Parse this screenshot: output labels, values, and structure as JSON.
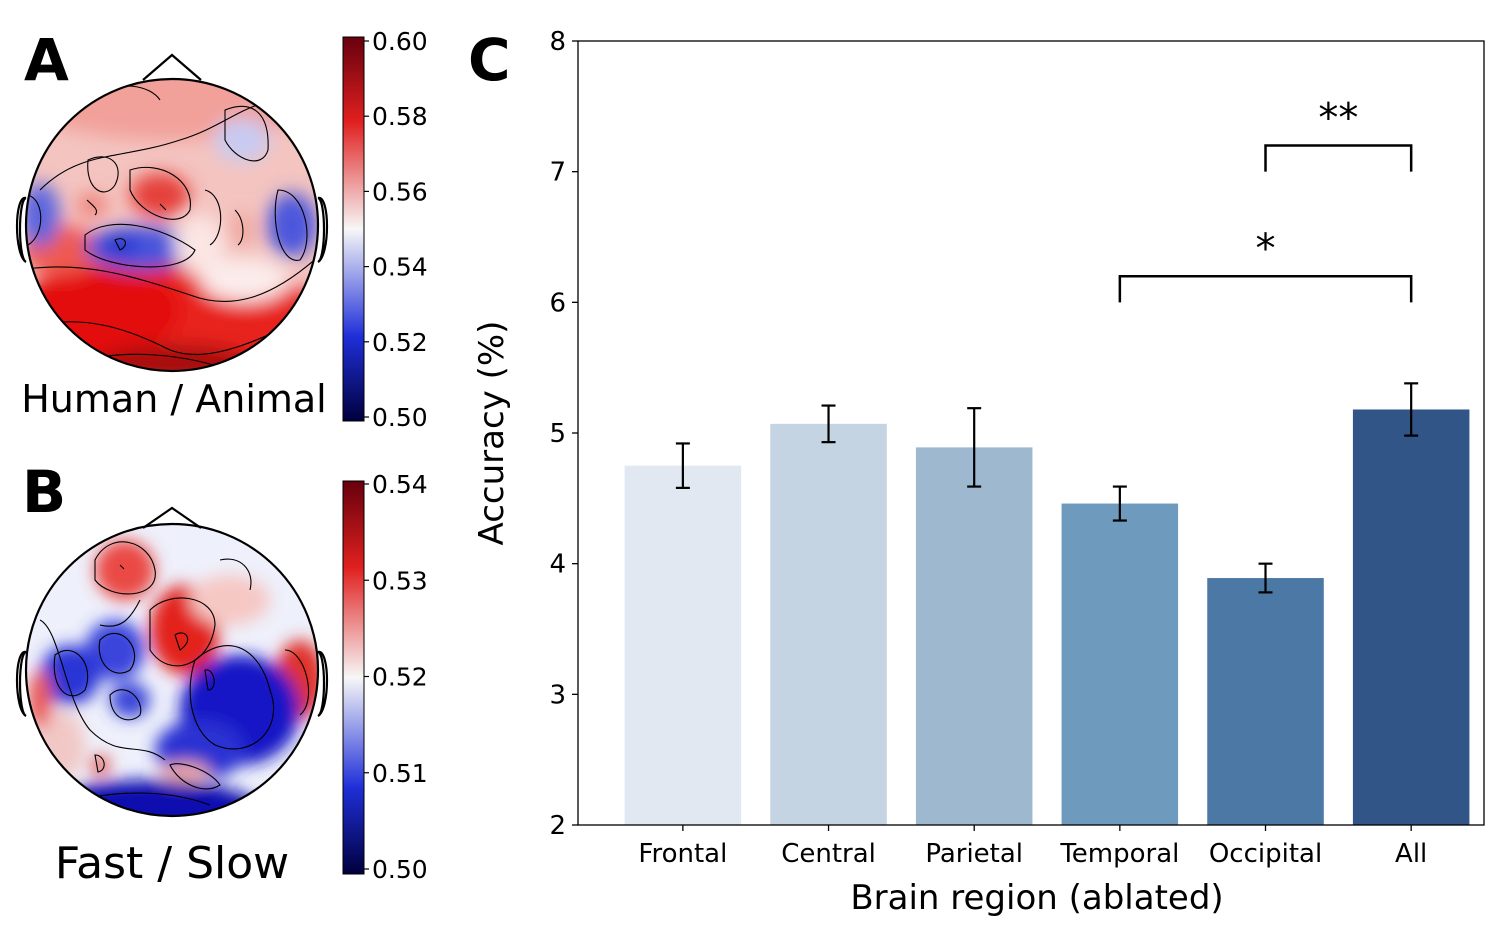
{
  "panels": {
    "A": {
      "letter": "A",
      "label": "Human / Animal",
      "colorbar_ticks": [
        "0.60",
        "0.58",
        "0.56",
        "0.54",
        "0.52",
        "0.50"
      ],
      "colorbar_range": [
        0.5,
        0.6
      ]
    },
    "B": {
      "letter": "B",
      "label": "Fast / Slow",
      "colorbar_ticks": [
        "0.54",
        "0.53",
        "0.52",
        "0.51",
        "0.50"
      ],
      "colorbar_range": [
        0.5,
        0.54
      ]
    },
    "C": {
      "letter": "C"
    }
  },
  "colors": {
    "cmap_high": "#67000d",
    "cmap_red": "#e0201f",
    "cmap_white": "#f7f7f7",
    "cmap_blue": "#1f2fd8",
    "cmap_low": "#00003d"
  },
  "chart_data": {
    "type": "bar",
    "title": "",
    "xlabel": "Brain region (ablated)",
    "ylabel": "Accuracy (%)",
    "ylim": [
      2,
      8
    ],
    "yticks": [
      "2",
      "3",
      "4",
      "5",
      "6",
      "7",
      "8"
    ],
    "categories": [
      "Frontal",
      "Central",
      "Parietal",
      "Temporal",
      "Occipital",
      "All"
    ],
    "values": [
      4.75,
      5.07,
      4.89,
      4.46,
      3.89,
      5.18
    ],
    "errors": [
      0.17,
      0.14,
      0.3,
      0.13,
      0.11,
      0.2
    ],
    "bar_colors": [
      "#e1e8f2",
      "#c4d4e3",
      "#9eb9cf",
      "#6e9abd",
      "#4b78a4",
      "#315587"
    ],
    "significance": [
      {
        "from": "Temporal",
        "to": "All",
        "y": 6.2,
        "label": "*"
      },
      {
        "from": "Occipital",
        "to": "All",
        "y": 7.2,
        "label": "**"
      }
    ]
  }
}
